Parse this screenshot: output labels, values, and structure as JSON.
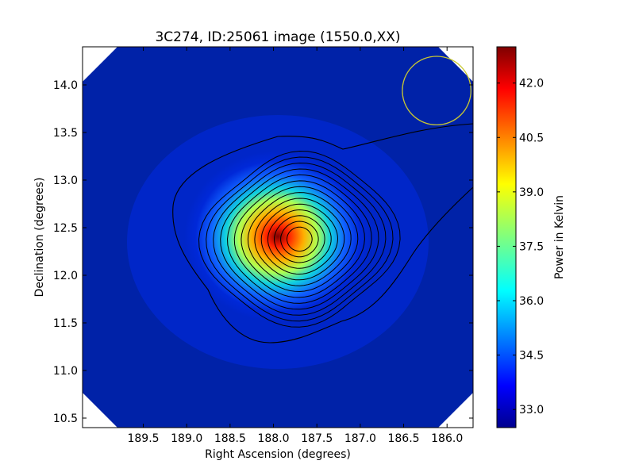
{
  "chart_data": {
    "type": "heatmap",
    "title": "3C274, ID:25061 image (1550.0,XX)",
    "xlabel": "Right Ascension (degrees)",
    "ylabel": "Declination (degrees)",
    "xlim": [
      190.2,
      185.7
    ],
    "ylim": [
      10.4,
      14.4
    ],
    "x_ticks": [
      189.5,
      189.0,
      188.5,
      188.0,
      187.5,
      187.0,
      186.5,
      186.0
    ],
    "x_tick_labels": [
      "189.5",
      "189.0",
      "188.5",
      "188.0",
      "187.5",
      "187.0",
      "186.5",
      "186.0"
    ],
    "y_ticks": [
      10.5,
      11.0,
      11.5,
      12.0,
      12.5,
      13.0,
      13.5,
      14.0
    ],
    "y_tick_labels": [
      "10.5",
      "11.0",
      "11.5",
      "12.0",
      "12.5",
      "13.0",
      "13.5",
      "14.0"
    ],
    "colormap": "jet",
    "source_peak": {
      "ra": 187.7,
      "dec": 12.38
    },
    "colorbar": {
      "label": "Power in Kelvin",
      "range": [
        32.5,
        43.0
      ],
      "ticks": [
        33.0,
        34.5,
        36.0,
        37.5,
        39.0,
        40.5,
        42.0
      ],
      "tick_labels": [
        "33.0",
        "34.5",
        "36.0",
        "37.5",
        "39.0",
        "40.5",
        "42.0"
      ]
    },
    "contour_count": 14,
    "beam_circle": {
      "ra": 186.12,
      "dec": 13.94,
      "radius_deg": 0.36,
      "color": "#c8c832"
    }
  }
}
